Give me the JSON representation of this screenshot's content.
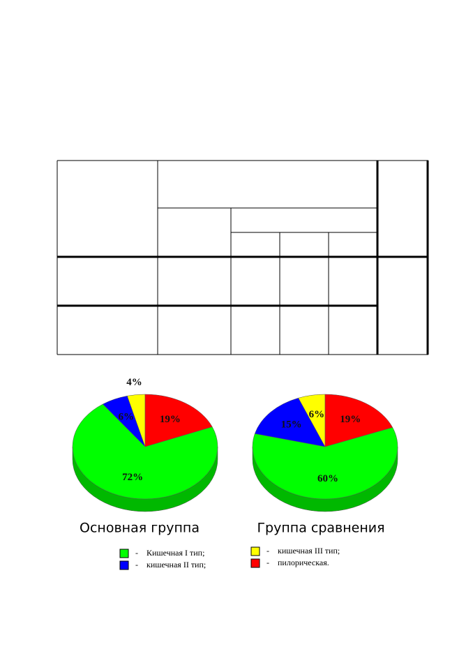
{
  "chart_data": [
    {
      "type": "pie",
      "title": "Основная группа",
      "categories": [
        "Кишечная I тип;",
        "кишечная II тип;",
        "кишечная III тип;",
        "пилорическая."
      ],
      "values": [
        72,
        6,
        4,
        19
      ],
      "value_labels": [
        "72%",
        "6%",
        "4%",
        "19%"
      ],
      "colors": [
        "#00ff00",
        "#0000ff",
        "#ffff00",
        "#ff0000"
      ]
    },
    {
      "type": "pie",
      "title": "Группа сравнения",
      "categories": [
        "Кишечная I тип;",
        "кишечная II тип;",
        "кишечная III тип;",
        "пилорическая."
      ],
      "values": [
        60,
        15,
        6,
        19
      ],
      "value_labels": [
        "60%",
        "15%",
        "6%",
        "19%"
      ],
      "colors": [
        "#00ff00",
        "#0000ff",
        "#ffff00",
        "#ff0000"
      ]
    }
  ],
  "legend": {
    "separator": "-"
  }
}
